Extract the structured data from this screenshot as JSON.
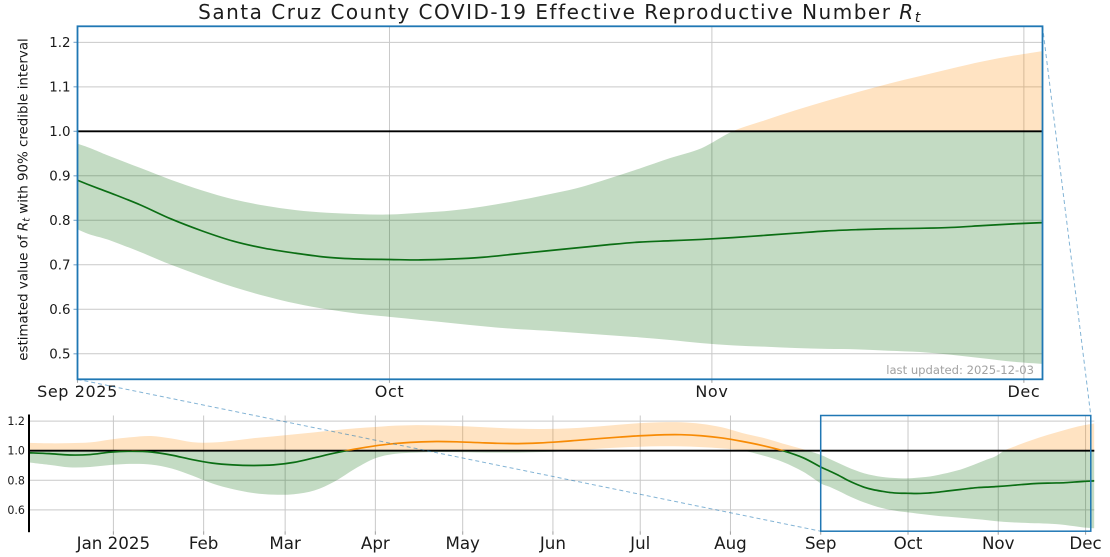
{
  "figure": {
    "title": {
      "prefix": "Santa Cruz County COVID-19 Effective Reproductive Number ",
      "math_symbol": "R",
      "math_subscript": "t"
    },
    "y_axis_label": {
      "prefix": "estimated value of ",
      "math_symbol": "R",
      "math_subscript": "t",
      "suffix": " with 90% credible interval"
    },
    "annotation": "last updated: 2025-12-03",
    "colors": {
      "axes_blue": "#1f77b4",
      "connector_blue": "#1f77b4",
      "median_green": "#0b6e14",
      "median_orange": "#f78b05",
      "band_green": "rgba(0,100,0,0.235)",
      "band_orange": "rgba(255,140,0,0.24)",
      "baseline_black": "#000000",
      "grid": "#c9c9c9",
      "tick": "#a6a6a6",
      "tick_text": "#1a1a1a",
      "annotation_text": "#a2a2a2"
    }
  },
  "chart_data": [
    {
      "id": "main",
      "type": "line",
      "description": "zoomed detail view of Rt, Sep-Dec 2025, median line with 90% credible band (green below 1, orange above 1)",
      "x_start": "2025-09-01",
      "x_end": "2025-12-02T19:00",
      "ylim": [
        0.4427,
        1.236
      ],
      "baseline": 1.0,
      "grid": true,
      "x_ticks": [
        {
          "date": "2025-09-01",
          "label": "Sep 2025"
        },
        {
          "date": "2025-10-01",
          "label": "Oct"
        },
        {
          "date": "2025-11-01",
          "label": "Nov"
        },
        {
          "date": "2025-12-01",
          "label": "Dec"
        }
      ],
      "y_ticks": [
        {
          "value": 0.5,
          "label": "0.5"
        },
        {
          "value": 0.6,
          "label": "0.6"
        },
        {
          "value": 0.7,
          "label": "0.7"
        },
        {
          "value": 0.8,
          "label": "0.8"
        },
        {
          "value": 0.9,
          "label": "0.9"
        },
        {
          "value": 1.0,
          "label": "1.0"
        },
        {
          "value": 1.1,
          "label": "1.1"
        },
        {
          "value": 1.2,
          "label": "1.2"
        }
      ]
    },
    {
      "id": "overview",
      "type": "line",
      "description": "full-year context view (Dec 2024 - Dec 2025) with zoom indicator box over Sep-Dec 2025",
      "x_start": "2024-12-03",
      "x_end": "2025-12-04",
      "ylim": [
        0.4561,
        1.2378
      ],
      "baseline": 1.0,
      "grid": true,
      "x_ticks": [
        {
          "date": "2025-01-01",
          "label": "Jan 2025"
        },
        {
          "date": "2025-02-01",
          "label": "Feb"
        },
        {
          "date": "2025-03-01",
          "label": "Mar"
        },
        {
          "date": "2025-04-01",
          "label": "Apr"
        },
        {
          "date": "2025-05-01",
          "label": "May"
        },
        {
          "date": "2025-06-01",
          "label": "Jun"
        },
        {
          "date": "2025-07-01",
          "label": "Jul"
        },
        {
          "date": "2025-08-01",
          "label": "Aug"
        },
        {
          "date": "2025-09-01",
          "label": "Sep"
        },
        {
          "date": "2025-10-01",
          "label": "Oct"
        },
        {
          "date": "2025-11-01",
          "label": "Nov"
        },
        {
          "date": "2025-12-01",
          "label": "Dec"
        }
      ],
      "y_ticks": [
        {
          "value": 0.6,
          "label": "0.6"
        },
        {
          "value": 0.8,
          "label": "0.8"
        },
        {
          "value": 1.0,
          "label": "1.0"
        },
        {
          "value": 1.2,
          "label": "1.2"
        }
      ],
      "zoom_box": {
        "x_start": "2025-09-01",
        "x_end": "2025-12-02T19:00"
      }
    }
  ],
  "series": {
    "name": "Rt estimate with 90% credible interval",
    "dates": [
      "2024-12-03",
      "2024-12-10",
      "2024-12-17",
      "2024-12-24",
      "2024-12-31",
      "2025-01-07",
      "2025-01-14",
      "2025-01-21",
      "2025-01-28",
      "2025-02-04",
      "2025-02-11",
      "2025-02-18",
      "2025-02-25",
      "2025-03-04",
      "2025-03-11",
      "2025-03-18",
      "2025-03-25",
      "2025-04-01",
      "2025-04-08",
      "2025-04-15",
      "2025-04-22",
      "2025-04-29",
      "2025-05-06",
      "2025-05-13",
      "2025-05-20",
      "2025-05-27",
      "2025-06-03",
      "2025-06-10",
      "2025-06-17",
      "2025-06-24",
      "2025-07-01",
      "2025-07-08",
      "2025-07-15",
      "2025-07-22",
      "2025-07-29",
      "2025-08-05",
      "2025-08-12",
      "2025-08-19",
      "2025-08-26",
      "2025-09-01",
      "2025-09-04",
      "2025-09-07",
      "2025-09-10",
      "2025-09-13",
      "2025-09-16",
      "2025-09-19",
      "2025-09-22",
      "2025-09-25",
      "2025-09-28",
      "2025-10-01",
      "2025-10-04",
      "2025-10-07",
      "2025-10-10",
      "2025-10-13",
      "2025-10-16",
      "2025-10-19",
      "2025-10-22",
      "2025-10-25",
      "2025-10-28",
      "2025-10-31",
      "2025-11-03",
      "2025-11-06",
      "2025-11-09",
      "2025-11-12",
      "2025-11-15",
      "2025-11-18",
      "2025-11-21",
      "2025-11-24",
      "2025-11-27",
      "2025-11-30",
      "2025-12-03",
      "2025-12-04"
    ],
    "median": [
      0.986,
      0.98,
      0.971,
      0.974,
      0.99,
      0.996,
      0.991,
      0.97,
      0.94,
      0.916,
      0.904,
      0.9,
      0.904,
      0.921,
      0.952,
      0.984,
      1.011,
      1.033,
      1.049,
      1.058,
      1.062,
      1.06,
      1.055,
      1.05,
      1.048,
      1.052,
      1.06,
      1.071,
      1.082,
      1.092,
      1.101,
      1.107,
      1.108,
      1.101,
      1.086,
      1.063,
      1.035,
      1.0,
      0.952,
      0.89,
      0.863,
      0.835,
      0.803,
      0.776,
      0.753,
      0.737,
      0.726,
      0.717,
      0.713,
      0.712,
      0.711,
      0.713,
      0.717,
      0.724,
      0.731,
      0.738,
      0.745,
      0.751,
      0.754,
      0.757,
      0.761,
      0.766,
      0.771,
      0.776,
      0.779,
      0.781,
      0.782,
      0.784,
      0.788,
      0.792,
      0.795,
      0.796
    ],
    "lower": [
      0.92,
      0.904,
      0.887,
      0.89,
      0.903,
      0.911,
      0.906,
      0.88,
      0.832,
      0.778,
      0.74,
      0.714,
      0.703,
      0.706,
      0.731,
      0.792,
      0.878,
      0.949,
      0.979,
      0.987,
      0.99,
      0.99,
      0.988,
      0.987,
      0.987,
      0.99,
      0.995,
      1.004,
      1.014,
      1.022,
      1.027,
      1.03,
      1.029,
      1.024,
      1.016,
      1.001,
      0.968,
      0.924,
      0.858,
      0.78,
      0.756,
      0.729,
      0.7,
      0.674,
      0.65,
      0.63,
      0.613,
      0.6,
      0.59,
      0.583,
      0.576,
      0.569,
      0.562,
      0.556,
      0.552,
      0.547,
      0.542,
      0.537,
      0.531,
      0.524,
      0.519,
      0.516,
      0.513,
      0.511,
      0.51,
      0.507,
      0.504,
      0.498,
      0.49,
      0.482,
      0.477,
      0.476
    ],
    "upper": [
      1.053,
      1.05,
      1.051,
      1.056,
      1.076,
      1.091,
      1.099,
      1.082,
      1.058,
      1.055,
      1.067,
      1.084,
      1.097,
      1.11,
      1.124,
      1.138,
      1.151,
      1.16,
      1.169,
      1.173,
      1.171,
      1.167,
      1.161,
      1.154,
      1.149,
      1.147,
      1.148,
      1.154,
      1.164,
      1.176,
      1.186,
      1.192,
      1.192,
      1.181,
      1.158,
      1.12,
      1.088,
      1.048,
      1.01,
      0.972,
      0.945,
      0.918,
      0.891,
      0.867,
      0.847,
      0.833,
      0.823,
      0.817,
      0.814,
      0.813,
      0.817,
      0.822,
      0.831,
      0.843,
      0.857,
      0.872,
      0.893,
      0.916,
      0.94,
      0.962,
      1.0,
      1.024,
      1.047,
      1.068,
      1.088,
      1.107,
      1.124,
      1.141,
      1.157,
      1.17,
      1.181,
      1.184
    ]
  }
}
